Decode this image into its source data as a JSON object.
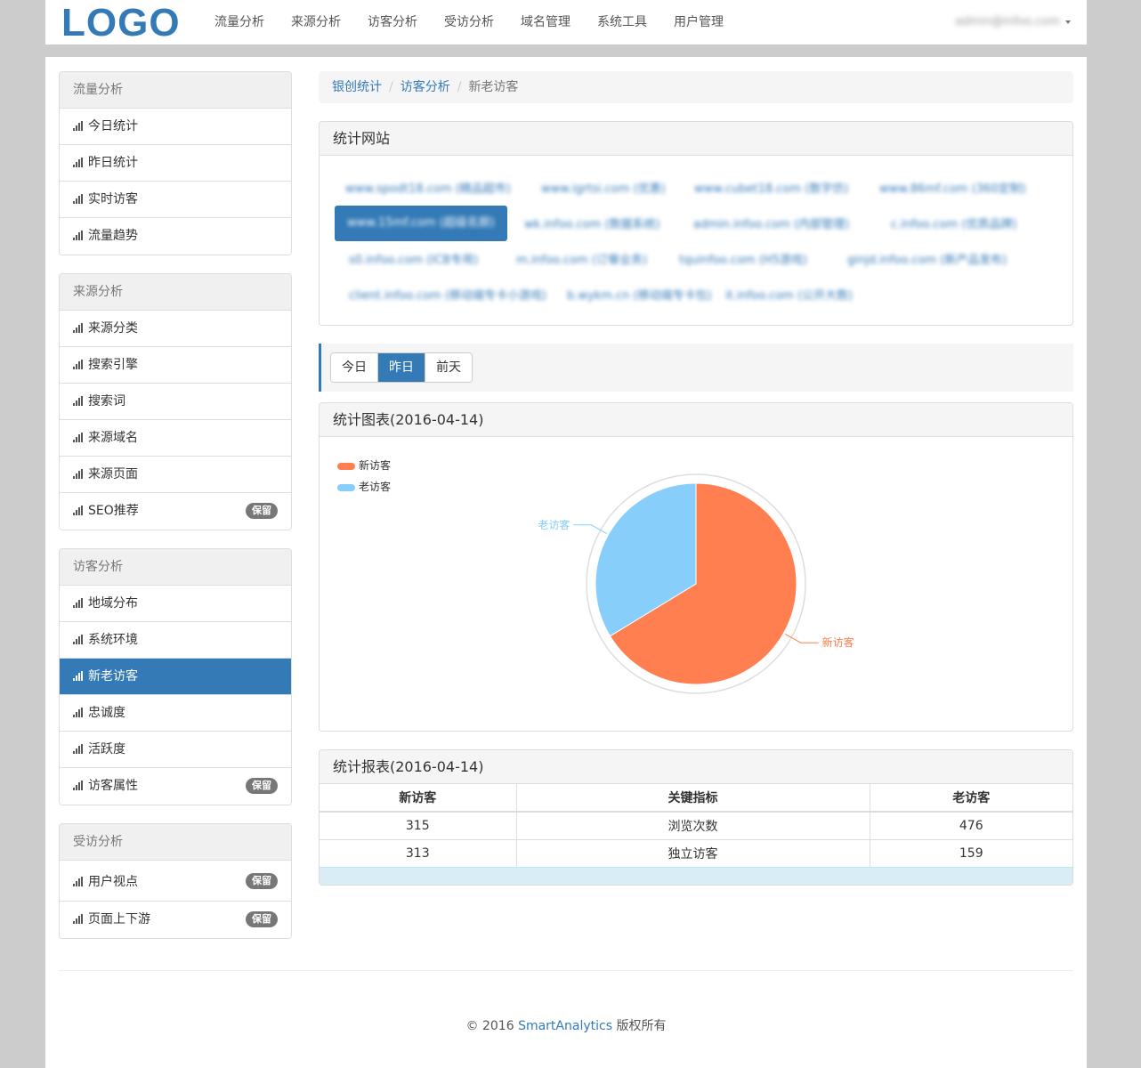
{
  "topnav": {
    "logo": "LOGO",
    "items": [
      "流量分析",
      "来源分析",
      "访客分析",
      "受访分析",
      "域名管理",
      "系统工具",
      "用户管理"
    ],
    "user": "admin@infoo.com"
  },
  "sidebar": {
    "groups": [
      {
        "title": "流量分析",
        "items": [
          {
            "label": "今日统计"
          },
          {
            "label": "昨日统计"
          },
          {
            "label": "实时访客"
          },
          {
            "label": "流量趋势"
          }
        ]
      },
      {
        "title": "来源分析",
        "items": [
          {
            "label": "来源分类"
          },
          {
            "label": "搜索引擎"
          },
          {
            "label": "搜索词"
          },
          {
            "label": "来源域名"
          },
          {
            "label": "来源页面"
          },
          {
            "label": "SEO推荐",
            "badge": "保留"
          }
        ]
      },
      {
        "title": "访客分析",
        "items": [
          {
            "label": "地域分布"
          },
          {
            "label": "系统环境"
          },
          {
            "label": "新老访客",
            "active": true
          },
          {
            "label": "忠诚度"
          },
          {
            "label": "活跃度"
          },
          {
            "label": "访客属性",
            "badge": "保留"
          }
        ]
      },
      {
        "title": "受访分析",
        "items": [
          {
            "label": "用户视点",
            "badge": "保留"
          },
          {
            "label": "页面上下游",
            "badge": "保留"
          }
        ]
      }
    ]
  },
  "breadcrumb": {
    "home": "银创统计",
    "section": "访客分析",
    "current": "新老访客"
  },
  "sites_panel": {
    "title": "统计网站",
    "links": [
      "www.spodt18.com (精品超市)",
      "www.igrtsi.com (优惠)",
      "www.cubet18.com (数字仿)",
      "www.86mf.com (360定制)",
      "www.15mf.com (超级名厨)",
      "wk.infoo.com (数据系统)",
      "admin.infoo.com (内部管理)",
      "c.infoo.com (优质品牌)",
      "s0.infoo.com (ICB专用)",
      "m.infoo.com (订餐业务)",
      "tquinfoo.com (H5游戏)",
      "ginjd.infoo.com (新产品发布)",
      "client.infoo.com (移动端专卡小游戏)",
      "b.wykm.cn (移动端专卡包)",
      "it.infoo.com (公开大数)"
    ],
    "active_index": 4
  },
  "day_tabs": {
    "items": [
      "今日",
      "昨日",
      "前天"
    ],
    "active_index": 1
  },
  "chart_panel": {
    "title": "统计图表(2016-04-14)"
  },
  "chart_data": {
    "type": "pie",
    "title": "",
    "slices": [
      {
        "name": "新访客",
        "value": 313,
        "color": "#ff7f50"
      },
      {
        "name": "老访客",
        "value": 159,
        "color": "#87cefa"
      }
    ],
    "legend_position": "top-left"
  },
  "report_panel": {
    "title": "统计报表(2016-04-14)",
    "columns": [
      "新访客",
      "关键指标",
      "老访客"
    ],
    "rows": [
      [
        "315",
        "浏览次数",
        "476"
      ],
      [
        "313",
        "独立访客",
        "159"
      ]
    ]
  },
  "footer": {
    "prefix": "© 2016 ",
    "brand": "SmartAnalytics",
    "suffix": " 版权所有"
  }
}
